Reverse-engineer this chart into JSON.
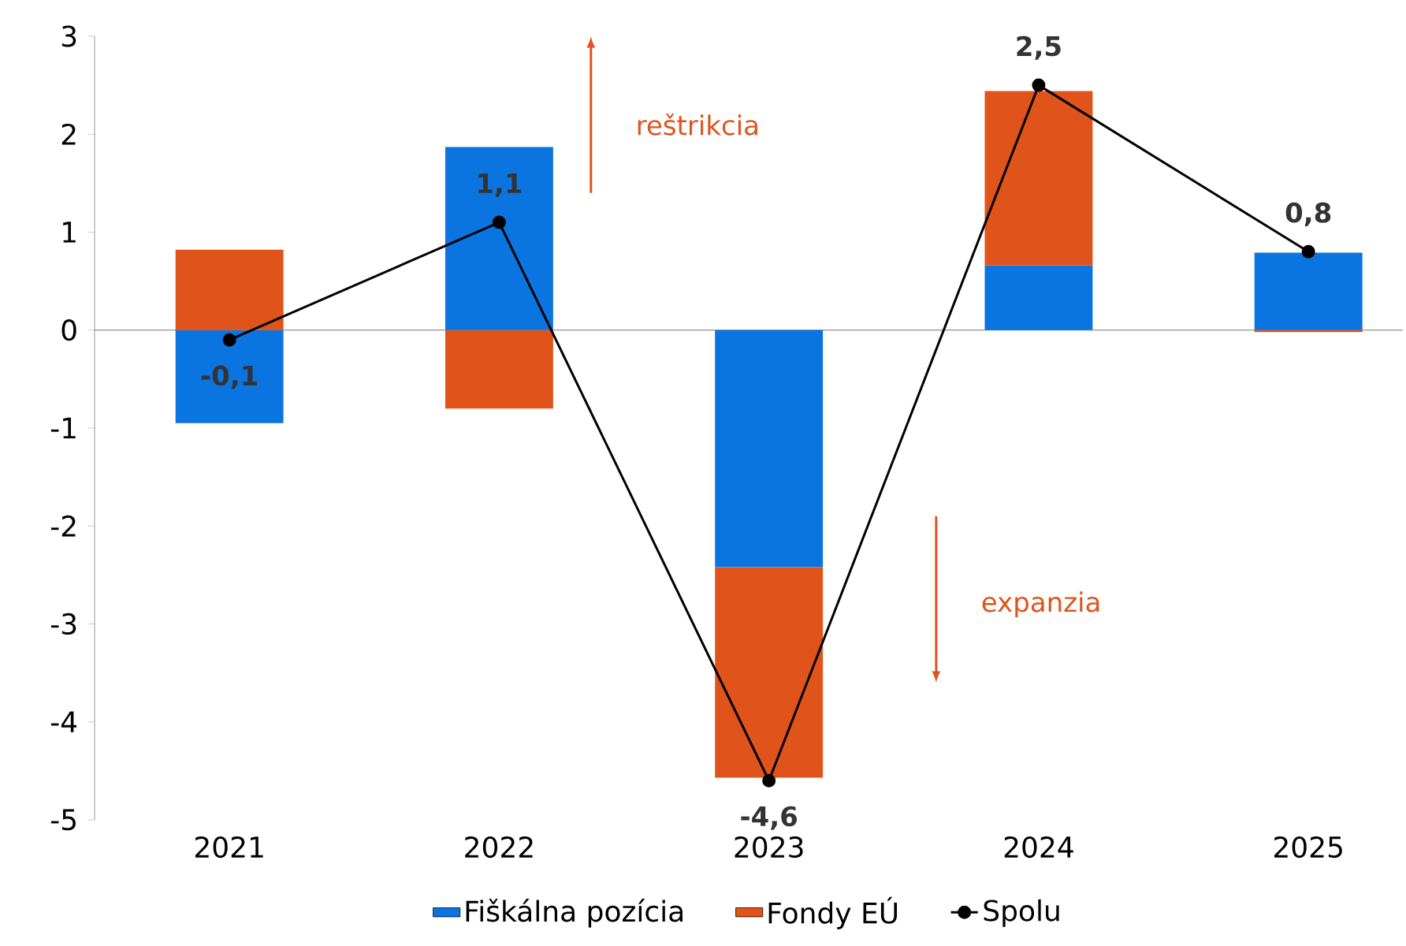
{
  "chart_data": {
    "type": "bar",
    "stacked": true,
    "categories": [
      "2021",
      "2022",
      "2023",
      "2024",
      "2025"
    ],
    "series": [
      {
        "name": "Fiškálna pozícia",
        "color": "#0a75e0",
        "values": [
          -0.95,
          1.87,
          -2.42,
          0.66,
          0.79
        ]
      },
      {
        "name": "Fondy EÚ",
        "color": "#e0541b",
        "values": [
          0.82,
          -0.8,
          -2.15,
          1.78,
          -0.02
        ]
      },
      {
        "name": "Spolu",
        "type": "line",
        "color": "#000000",
        "marker": "circle",
        "values": [
          -0.1,
          1.1,
          -4.6,
          2.5,
          0.8
        ],
        "value_labels": [
          "-0,1",
          "1,1",
          "-4,6",
          "2,5",
          "0,8"
        ]
      }
    ],
    "ylim": [
      -5,
      3
    ],
    "yticks": [
      -5,
      -4,
      -3,
      -2,
      -1,
      0,
      1,
      2,
      3
    ],
    "annotations": [
      "reštrikcia",
      "expanzia"
    ],
    "ref_lines": [
      {
        "axis": "y",
        "value": 0,
        "color": "#595959"
      }
    ],
    "legend": "bottom"
  }
}
